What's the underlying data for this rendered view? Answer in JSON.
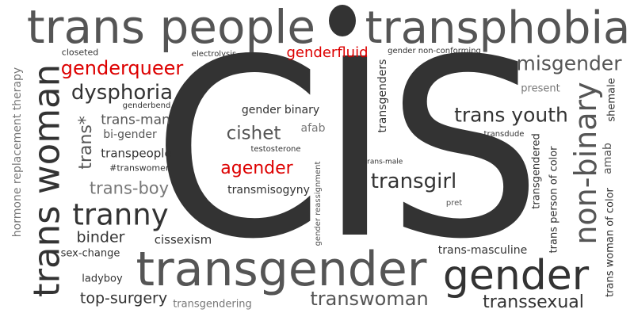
{
  "colors": {
    "dark": "#333333",
    "mid": "#555555",
    "light": "#777777",
    "red": "#dd0000"
  },
  "words": {
    "cis": "CIS",
    "trans_people": "trans people",
    "transphobia": "transphobia",
    "transgender": "transgender",
    "gender": "gender",
    "trans_woman": "trans woman",
    "non_binary": "non-binary",
    "tranny": "tranny",
    "misgender": "misgender",
    "dysphoria": "dysphoria",
    "genderqueer": "genderqueer",
    "trans_youth": "trans youth",
    "transgirl": "transgirl",
    "transwoman": "transwoman",
    "trans_boy": "trans-boy",
    "cishet": "cishet",
    "agender": "agender",
    "genderfluid": "genderfluid",
    "binder": "binder",
    "top_surgery": "top-surgery",
    "transsexual": "transsexual",
    "trans_star": "trans*",
    "trans_man": "trans-man",
    "gender_binary": "gender binary",
    "transmisogyny": "transmisogyny",
    "transpeople": "transpeople",
    "bi_gender": "bi-gender",
    "cissexism": "cissexism",
    "trans_masculine": "trans-masculine",
    "transgendering": "transgendering",
    "transgenders": "transgenders",
    "transgendered": "transgendered",
    "trans_person_of_color": "trans person of color",
    "trans_woman_of_color": "trans woman of color",
    "amab": "amab",
    "shemale": "shemale",
    "hrt": "hormone replacement therapy",
    "closeted": "closeted",
    "electrolysis": "electrolysis",
    "gender_non_conforming": "gender non-conforming",
    "present": "present",
    "genderbend": "genderbend",
    "afab": "afab",
    "testosterone": "testosterone",
    "transdude": "transdude",
    "hashtag_transwomen": "#transwomen",
    "trans_male": "trans-male",
    "gender_reassignment": "gender reassignment",
    "pret": "pret",
    "sex_change": "sex-change",
    "ladyboy": "ladyboy"
  }
}
